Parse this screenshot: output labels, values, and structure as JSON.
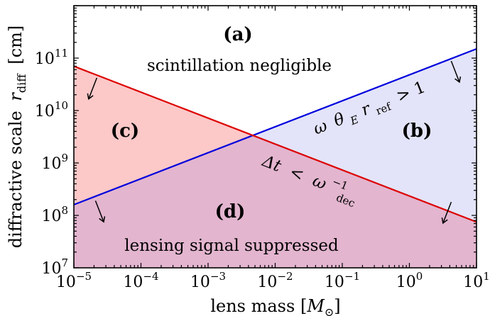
{
  "chart_data": {
    "type": "line",
    "x_scale": "log",
    "y_scale": "log",
    "xlim": [
      1e-05,
      10
    ],
    "ylim": [
      10000000.0,
      1000000000000.0
    ],
    "xlabel": "lens mass [M_⊙]",
    "ylabel": "diffractive scale r_diff [cm]",
    "x_ticks": [
      {
        "value": 1e-05,
        "base": "10",
        "exp": "−5"
      },
      {
        "value": 0.0001,
        "base": "10",
        "exp": "−4"
      },
      {
        "value": 0.001,
        "base": "10",
        "exp": "−3"
      },
      {
        "value": 0.01,
        "base": "10",
        "exp": "−2"
      },
      {
        "value": 0.1,
        "base": "10",
        "exp": "−1"
      },
      {
        "value": 1,
        "base": "10",
        "exp": "0"
      },
      {
        "value": 10,
        "base": "10",
        "exp": "1"
      }
    ],
    "y_ticks": [
      {
        "value": 10000000.0,
        "base": "10",
        "exp": "7"
      },
      {
        "value": 100000000.0,
        "base": "10",
        "exp": "8"
      },
      {
        "value": 1000000000.0,
        "base": "10",
        "exp": "9"
      },
      {
        "value": 10000000000.0,
        "base": "10",
        "exp": "10"
      },
      {
        "value": 100000000000.0,
        "base": "10",
        "exp": "11"
      }
    ],
    "series": [
      {
        "name": "ω θ_E r_ref > 1",
        "color": "#0000dd",
        "x": [
          1e-05,
          10
        ],
        "y": [
          160000000.0,
          150000000000.0
        ]
      },
      {
        "name": "Δt < ω_dec^−1",
        "color": "#dd0000",
        "x": [
          1e-05,
          10
        ],
        "y": [
          70000000000.0,
          75000000.0
        ]
      }
    ],
    "regions": [
      {
        "label": "(a)",
        "description": "scintillation negligible",
        "fill": "none"
      },
      {
        "label": "(b)",
        "fill": "#e3e4f9"
      },
      {
        "label": "(c)",
        "fill": "#fcc8c8"
      },
      {
        "label": "(d)",
        "description": "lensing signal suppressed",
        "fill": "#e3b5cf"
      }
    ],
    "arrows": [
      {
        "line": "red",
        "x": 2.2e-05,
        "y": 42000000000.0
      },
      {
        "line": "red",
        "x": 4.2,
        "y": 180000000.0
      },
      {
        "line": "blue",
        "x": 2.1e-05,
        "y": 190000000.0
      },
      {
        "line": "blue",
        "x": 4.2,
        "y": 88000000000.0
      }
    ]
  },
  "labels": {
    "region_a": "(a)",
    "region_a_text": "scintillation negligible",
    "region_b": "(b)",
    "region_c": "(c)",
    "region_d": "(d)",
    "region_d_text": "lensing signal suppressed",
    "blue_cond_omega": "ω",
    "blue_cond_theta": "θ",
    "blue_cond_E": "E",
    "blue_cond_r": "r",
    "blue_cond_ref": "ref",
    "blue_cond_rhs": "> 1",
    "red_cond_dt": "Δt",
    "red_cond_lt": "<",
    "red_cond_omega": "ω",
    "red_cond_exp": "−1",
    "red_cond_dec": "dec",
    "xlabel_text": "lens mass [",
    "xlabel_M": "M",
    "xlabel_sun": "⊙",
    "xlabel_close": "]",
    "ylabel_text": "diffractive scale",
    "ylabel_r": "r",
    "ylabel_sub": "diff",
    "ylabel_unit": "[cm]"
  }
}
